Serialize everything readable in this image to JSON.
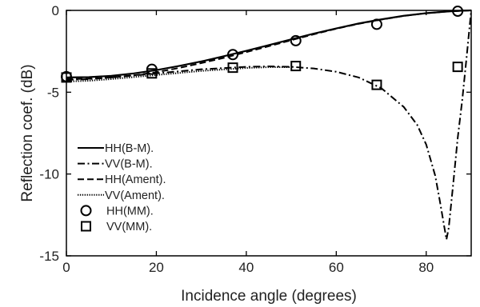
{
  "chart_data": {
    "type": "line",
    "xlabel": "Incidence angle (degrees)",
    "ylabel": "Reflection coef. (dB)",
    "xlim": [
      0,
      90
    ],
    "ylim": [
      -15,
      0
    ],
    "x_ticks": [
      0,
      20,
      40,
      60,
      80
    ],
    "y_ticks": [
      0,
      -5,
      -10,
      -15
    ],
    "grid": false,
    "legend_position": "lower-left",
    "series": [
      {
        "name": "HH(B-M).",
        "kind": "line",
        "line_style": "solid",
        "x": [
          0,
          5,
          10,
          15,
          20,
          25,
          30,
          35,
          40,
          45,
          50,
          55,
          60,
          65,
          70,
          75,
          80,
          85,
          88,
          90
        ],
        "y": [
          -4.1,
          -4.08,
          -4.0,
          -3.85,
          -3.65,
          -3.4,
          -3.12,
          -2.8,
          -2.47,
          -2.12,
          -1.77,
          -1.42,
          -1.1,
          -0.8,
          -0.55,
          -0.33,
          -0.17,
          -0.06,
          -0.02,
          0
        ]
      },
      {
        "name": "VV(B-M).",
        "kind": "line",
        "line_style": "dashdot",
        "x": [
          0,
          5,
          10,
          20,
          30,
          40,
          45,
          50,
          55,
          60,
          65,
          70,
          75,
          78,
          80,
          82,
          83,
          84,
          84.5,
          85,
          86,
          87,
          88,
          89,
          90
        ],
        "y": [
          -4.25,
          -4.2,
          -4.1,
          -3.85,
          -3.6,
          -3.45,
          -3.42,
          -3.45,
          -3.55,
          -3.75,
          -4.1,
          -4.75,
          -5.9,
          -7.0,
          -8.2,
          -10.1,
          -11.6,
          -13.2,
          -14.0,
          -13.3,
          -10.6,
          -7.8,
          -5.5,
          -2.8,
          0
        ]
      },
      {
        "name": "HH(Ament).",
        "kind": "line",
        "line_style": "dashed",
        "x": [
          0,
          5,
          10,
          15,
          20,
          25,
          30,
          35,
          40,
          45,
          50,
          55,
          60,
          65,
          70,
          75,
          80,
          85,
          88,
          90
        ],
        "y": [
          -4.2,
          -4.18,
          -4.1,
          -3.97,
          -3.78,
          -3.52,
          -3.22,
          -2.9,
          -2.55,
          -2.19,
          -1.82,
          -1.46,
          -1.12,
          -0.82,
          -0.56,
          -0.34,
          -0.17,
          -0.06,
          -0.02,
          0
        ]
      },
      {
        "name": "VV(Ament).",
        "kind": "line",
        "line_style": "dotted",
        "x": [
          0,
          5,
          10,
          20,
          30,
          40,
          45,
          50
        ],
        "y": [
          -4.35,
          -4.3,
          -4.2,
          -3.95,
          -3.7,
          -3.52,
          -3.47,
          -3.47
        ]
      },
      {
        "name": "HH(MM).",
        "kind": "marker",
        "marker": "circle",
        "x": [
          0,
          19,
          37,
          51,
          69,
          87
        ],
        "y": [
          -4.05,
          -3.6,
          -2.7,
          -1.85,
          -0.85,
          -0.05
        ]
      },
      {
        "name": "VV(MM).",
        "kind": "marker",
        "marker": "square",
        "x": [
          0,
          19,
          37,
          51,
          69,
          87
        ],
        "y": [
          -4.1,
          -3.85,
          -3.5,
          -3.4,
          -4.55,
          -3.45
        ]
      }
    ]
  }
}
